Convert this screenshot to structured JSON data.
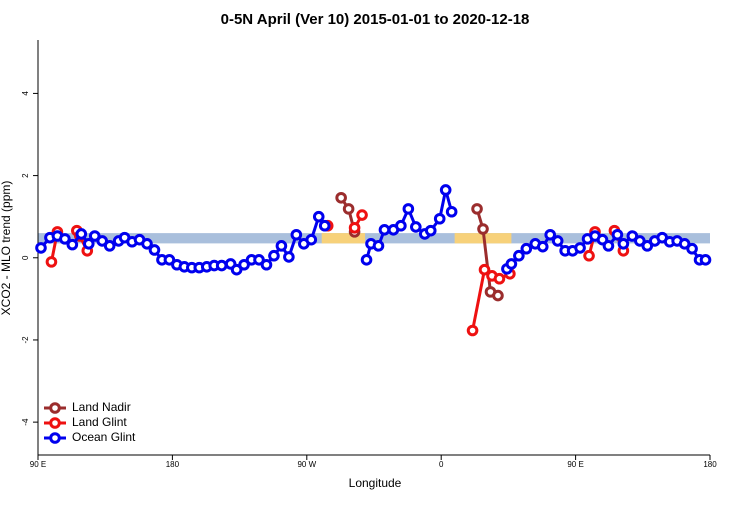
{
  "chart_data": {
    "type": "line",
    "title": "0-5N April (Ver 10)   2015-01-01 to 2020-12-18",
    "x_label": "Longitude",
    "y_label": "XCO2 - MLO trend (ppm)",
    "xlim": [
      90,
      540
    ],
    "ylim": [
      -4.8,
      5.3
    ],
    "xticks": [
      {
        "value": 90,
        "label": "90 E"
      },
      180,
      {
        "value": 270,
        "label": "90 W"
      },
      {
        "value": 360,
        "label": "0"
      },
      {
        "value": 450,
        "label": "90 E"
      },
      {
        "value": 540,
        "label": "180"
      }
    ],
    "yticks": [
      -4,
      -2,
      0,
      2,
      4
    ],
    "band": {
      "ymin": 0.35,
      "ymax": 0.6,
      "color": "#a9bfdc"
    },
    "highlights": {
      "color": "#f7d17a",
      "ranges": [
        [
          280,
          309
        ],
        [
          369,
          407
        ]
      ]
    },
    "legend": "bottom-left",
    "series": [
      {
        "name": "Land Nadir",
        "color": "#9b2d2d",
        "x": [
          293,
          298,
          302,
          null,
          384,
          388,
          393,
          398
        ],
        "values": [
          1.46,
          1.19,
          0.63,
          null,
          1.19,
          0.7,
          -0.83,
          -0.92
        ]
      },
      {
        "name": "Land Glint",
        "color": "#ee1111",
        "x": [
          99,
          103,
          null,
          116,
          118,
          123,
          null,
          284,
          null,
          302,
          307,
          null,
          381,
          389,
          394,
          399,
          406,
          null,
          459,
          463,
          null,
          476,
          482
        ],
        "values": [
          -0.1,
          0.63,
          null,
          0.66,
          0.53,
          0.17,
          null,
          0.78,
          null,
          0.73,
          1.04,
          null,
          -1.77,
          -0.29,
          -0.44,
          -0.51,
          -0.39,
          null,
          0.05,
          0.63,
          null,
          0.66,
          0.17
        ]
      },
      {
        "name": "Ocean Glint",
        "color": "#0000ee",
        "x": [
          92,
          98,
          103,
          108,
          113,
          119,
          124,
          128,
          133,
          138,
          144,
          148,
          153,
          158,
          163,
          168,
          173,
          178,
          183,
          188,
          193,
          198,
          203,
          208,
          213,
          219,
          223,
          228,
          233,
          238,
          243,
          248,
          253,
          258,
          263,
          268,
          273,
          278,
          282,
          null,
          310,
          313,
          318,
          322,
          328,
          333,
          338,
          343,
          349,
          353,
          359,
          363,
          367,
          null,
          404,
          407,
          412,
          417,
          423,
          428,
          433,
          438,
          443,
          448,
          453,
          458,
          463,
          468,
          472,
          478,
          482,
          488,
          493,
          498,
          503,
          508,
          513,
          518,
          523,
          528,
          533,
          537
        ],
        "values": [
          0.24,
          0.49,
          0.53,
          0.46,
          0.32,
          0.58,
          0.34,
          0.53,
          0.41,
          0.29,
          0.41,
          0.49,
          0.39,
          0.44,
          0.34,
          0.19,
          -0.05,
          -0.05,
          -0.17,
          -0.22,
          -0.24,
          -0.24,
          -0.22,
          -0.19,
          -0.19,
          -0.15,
          -0.29,
          -0.17,
          -0.05,
          -0.05,
          -0.17,
          0.05,
          0.29,
          0.02,
          0.56,
          0.34,
          0.44,
          1.0,
          0.78,
          null,
          -0.05,
          0.34,
          0.29,
          0.68,
          0.68,
          0.78,
          1.19,
          0.75,
          0.58,
          0.66,
          0.95,
          1.65,
          1.12,
          null,
          -0.27,
          -0.15,
          0.05,
          0.22,
          0.34,
          0.27,
          0.56,
          0.41,
          0.17,
          0.17,
          0.24,
          0.46,
          0.53,
          0.44,
          0.29,
          0.56,
          0.34,
          0.53,
          0.41,
          0.29,
          0.41,
          0.49,
          0.39,
          0.41,
          0.34,
          0.22,
          -0.05,
          -0.05
        ]
      }
    ]
  }
}
